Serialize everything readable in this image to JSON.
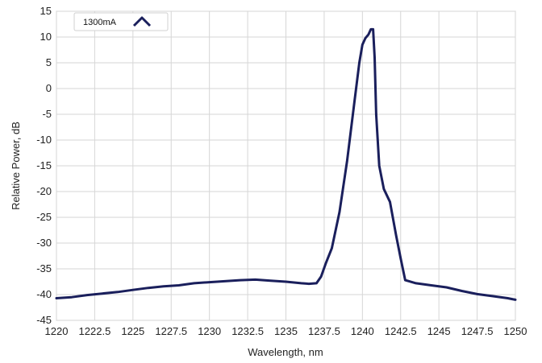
{
  "chart_data": {
    "type": "line",
    "title": "",
    "xlabel": "Wavelength, nm",
    "ylabel": "Relative Power, dB",
    "xlim": [
      1220,
      1250
    ],
    "ylim": [
      -45,
      15
    ],
    "x_ticks": [
      1220,
      1222.5,
      1225,
      1227.5,
      1230,
      1232.5,
      1235,
      1237.5,
      1240,
      1242.5,
      1245,
      1247.5,
      1250
    ],
    "x_tick_labels": [
      "1220",
      "1222.5",
      "1225",
      "1227.5",
      "1230",
      "1232.5",
      "1235",
      "1237.5",
      "1240",
      "1242.5",
      "1245",
      "1247.5",
      "1250"
    ],
    "y_ticks": [
      15,
      10,
      5,
      0,
      -5,
      -10,
      -15,
      -20,
      -25,
      -30,
      -35,
      -40,
      -45
    ],
    "y_tick_labels": [
      "15",
      "10",
      "5",
      "0",
      "-5",
      "-10",
      "-15",
      "-20",
      "-25",
      "-30",
      "-35",
      "-40",
      "-45"
    ],
    "grid": true,
    "legend_position": "top-left",
    "series": [
      {
        "name": "1300mA",
        "color": "#1a1f5c",
        "x": [
          1220,
          1221,
          1222,
          1223,
          1224,
          1225,
          1226,
          1227,
          1228,
          1229,
          1230,
          1231,
          1232,
          1233,
          1234,
          1235,
          1236,
          1236.5,
          1237,
          1237.3,
          1237.6,
          1238,
          1238.5,
          1239,
          1239.5,
          1239.8,
          1240,
          1240.2,
          1240.4,
          1240.55,
          1240.7,
          1240.8,
          1240.9,
          1241.1,
          1241.4,
          1241.8,
          1242.2,
          1242.5,
          1242.8,
          1243.5,
          1244.5,
          1245.5,
          1246.5,
          1247.5,
          1248.5,
          1249.5,
          1250
        ],
        "y": [
          -40.7,
          -40.5,
          -40.1,
          -39.8,
          -39.5,
          -39.1,
          -38.7,
          -38.4,
          -38.2,
          -37.8,
          -37.6,
          -37.4,
          -37.2,
          -37.1,
          -37.3,
          -37.5,
          -37.8,
          -37.9,
          -37.8,
          -36.5,
          -34,
          -31,
          -24,
          -14,
          -2,
          5,
          8.5,
          9.8,
          10.5,
          11.5,
          11.5,
          6,
          -5,
          -15,
          -19.5,
          -22,
          -28.5,
          -33,
          -37.2,
          -37.8,
          -38.2,
          -38.6,
          -39.3,
          -39.9,
          -40.3,
          -40.7,
          -41
        ]
      }
    ]
  }
}
